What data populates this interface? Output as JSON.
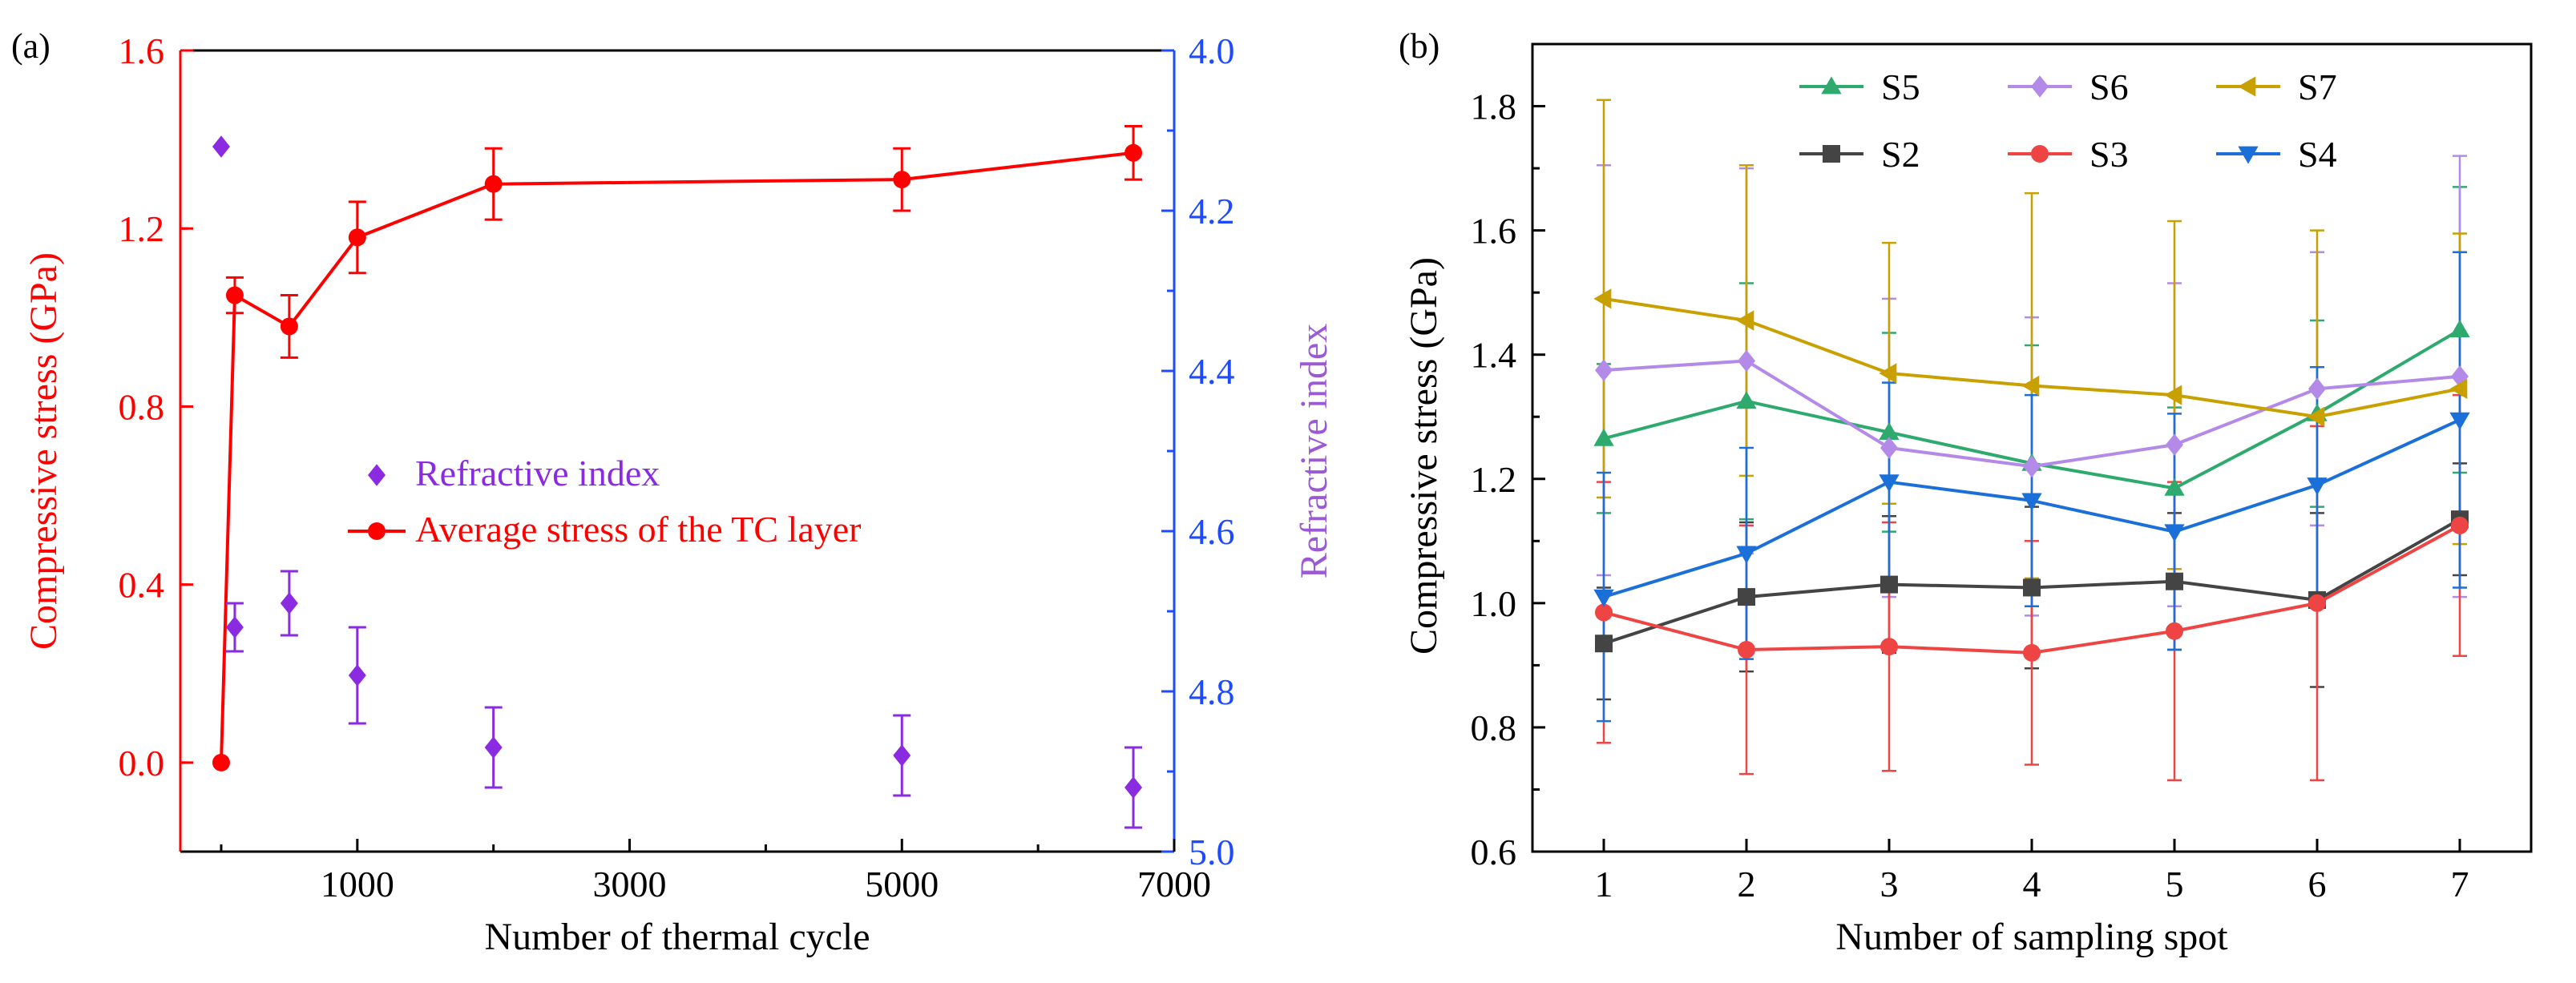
{
  "chart_data": [
    {
      "panel_label": "(a)",
      "type": "line",
      "xlabel": "Number of thermal cycle",
      "ylabel": "Compressive stress (GPa)",
      "ylabel_right": "Refractive index",
      "xlim": [
        -300,
        7000
      ],
      "ylim": [
        -0.2,
        1.6
      ],
      "ylim_right": [
        4.0,
        5.0
      ],
      "right_axis_inverted": true,
      "xticks": [
        1000,
        3000,
        5000,
        7000
      ],
      "yticks": [
        0.0,
        0.4,
        0.8,
        1.2,
        1.6
      ],
      "yticks_right": [
        4.0,
        4.2,
        4.4,
        4.6,
        4.8,
        5.0
      ],
      "legend_position": "center",
      "colors": {
        "stress": "#ff0000",
        "refractive": "#8a2be2",
        "left_axis": "#ff0000",
        "right_axis": "#1e4bff",
        "right_label": "#9b59d6"
      },
      "series": [
        {
          "name": "Average stress of the TC layer",
          "axis": "left",
          "marker": "circle",
          "x": [
            0,
            100,
            500,
            1000,
            2000,
            5000,
            6700
          ],
          "values": [
            0.0,
            1.05,
            0.98,
            1.18,
            1.3,
            1.31,
            1.37
          ],
          "err": [
            0,
            0.04,
            0.07,
            0.08,
            0.08,
            0.07,
            0.06
          ]
        },
        {
          "name": "Refractive index",
          "axis": "right",
          "marker": "diamond",
          "x": [
            0,
            100,
            500,
            1000,
            2000,
            5000,
            6700
          ],
          "values": [
            4.12,
            4.72,
            4.69,
            4.78,
            4.87,
            4.88,
            4.92
          ],
          "err": [
            0,
            0.03,
            0.04,
            0.06,
            0.05,
            0.05,
            0.05
          ]
        }
      ]
    },
    {
      "panel_label": "(b)",
      "type": "line",
      "xlabel": "Number of sampling spot",
      "ylabel": "Compressive stress (GPa)",
      "categories": [
        "1",
        "2",
        "3",
        "4",
        "5",
        "6",
        "7"
      ],
      "xlim": [
        0.5,
        7.5
      ],
      "ylim": [
        0.6,
        1.9
      ],
      "yticks": [
        0.6,
        0.8,
        1.0,
        1.2,
        1.4,
        1.6,
        1.8
      ],
      "legend_position": "top",
      "series": [
        {
          "name": "S5",
          "color": "#2eaa6e",
          "marker": "triangle-up",
          "values": [
            1.265,
            1.325,
            1.275,
            1.225,
            1.185,
            1.305,
            1.44
          ],
          "err": [
            0.12,
            0.19,
            0.16,
            0.19,
            0.13,
            0.15,
            0.23
          ]
        },
        {
          "name": "S6",
          "color": "#b38ae8",
          "marker": "diamond",
          "values": [
            1.375,
            1.39,
            1.25,
            1.22,
            1.255,
            1.345,
            1.365
          ],
          "err": [
            0.33,
            0.31,
            0.24,
            0.24,
            0.26,
            0.22,
            0.355
          ]
        },
        {
          "name": "S7",
          "color": "#c8a000",
          "marker": "triangle-left",
          "values": [
            1.49,
            1.455,
            1.37,
            1.35,
            1.335,
            1.3,
            1.345
          ],
          "err": [
            0.32,
            0.25,
            0.21,
            0.31,
            0.28,
            0.3,
            0.25
          ]
        },
        {
          "name": "S2",
          "color": "#444444",
          "marker": "square",
          "values": [
            0.935,
            1.01,
            1.03,
            1.025,
            1.035,
            1.005,
            1.135
          ],
          "err": [
            0.09,
            0.12,
            0.11,
            0.13,
            0.11,
            0.14,
            0.09
          ]
        },
        {
          "name": "S3",
          "color": "#ee4444",
          "marker": "circle",
          "values": [
            0.985,
            0.925,
            0.93,
            0.92,
            0.955,
            1.0,
            1.125
          ],
          "err": [
            0.21,
            0.2,
            0.2,
            0.18,
            0.24,
            0.285,
            0.21
          ]
        },
        {
          "name": "S4",
          "color": "#1b6fd8",
          "marker": "triangle-down",
          "values": [
            1.01,
            1.08,
            1.195,
            1.165,
            1.115,
            1.19,
            1.295
          ],
          "err": [
            0.2,
            0.17,
            0.16,
            0.17,
            0.19,
            0.19,
            0.27
          ]
        }
      ]
    }
  ]
}
